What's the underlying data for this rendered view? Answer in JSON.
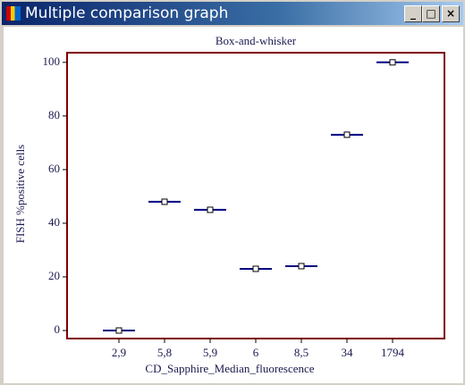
{
  "window_title": "Multiple comparison graph",
  "chart_data": {
    "type": "box",
    "title": "Box-and-whisker",
    "xlabel": "CD_Sapphire_Median_fluorescence",
    "ylabel": "FISH %positive cells",
    "categories": [
      "2,9",
      "5,8",
      "5,9",
      "6",
      "8,5",
      "34",
      "1794"
    ],
    "values": [
      0,
      48,
      45,
      23,
      24,
      73,
      100
    ],
    "color": "#000080",
    "frame_color": "#800000",
    "ylim": [
      -3,
      103.6
    ],
    "yticks": [
      0,
      20,
      40,
      60,
      80,
      100
    ],
    "grid": false
  }
}
